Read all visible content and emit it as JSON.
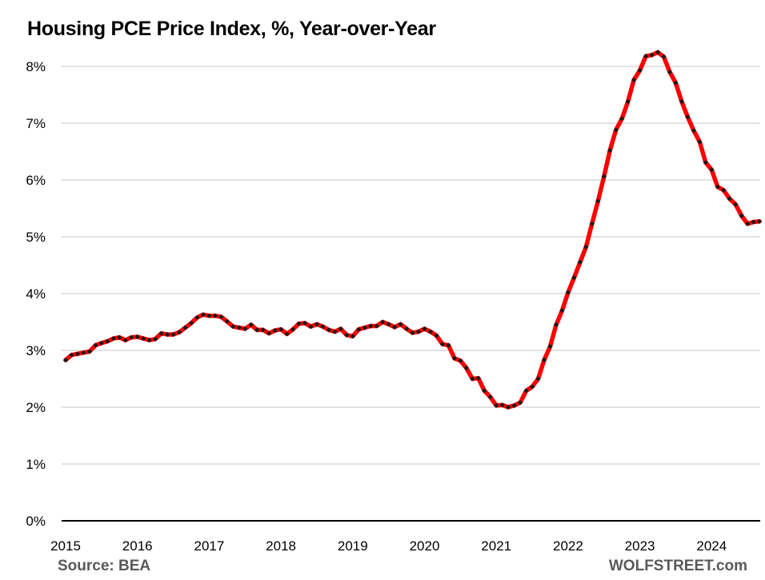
{
  "chart_data": {
    "type": "line",
    "title": "Housing PCE Price Index, %, Year-over-Year",
    "xlabel": "",
    "ylabel": "",
    "ylim": [
      0,
      8
    ],
    "yticks": [
      "0%",
      "1%",
      "2%",
      "3%",
      "4%",
      "5%",
      "6%",
      "7%",
      "8%"
    ],
    "ytick_values": [
      0,
      1,
      2,
      3,
      4,
      5,
      6,
      7,
      8
    ],
    "xticks": [
      "2015",
      "2016",
      "2017",
      "2018",
      "2019",
      "2020",
      "2021",
      "2022",
      "2023",
      "2024"
    ],
    "x_start": "2015-01",
    "x_end": "2024-09",
    "frequency": "monthly",
    "grid": true,
    "series": [
      {
        "name": "Housing PCE Price Index YoY",
        "color": "#ff0000",
        "marker_color": "#1a1a1a",
        "values": [
          2.83,
          2.92,
          2.94,
          2.96,
          2.98,
          3.09,
          3.13,
          3.16,
          3.21,
          3.23,
          3.18,
          3.23,
          3.24,
          3.21,
          3.18,
          3.2,
          3.3,
          3.28,
          3.28,
          3.32,
          3.4,
          3.48,
          3.58,
          3.63,
          3.61,
          3.61,
          3.59,
          3.51,
          3.42,
          3.4,
          3.38,
          3.45,
          3.36,
          3.36,
          3.3,
          3.35,
          3.37,
          3.29,
          3.37,
          3.47,
          3.48,
          3.42,
          3.46,
          3.42,
          3.36,
          3.33,
          3.38,
          3.27,
          3.25,
          3.37,
          3.4,
          3.43,
          3.43,
          3.5,
          3.46,
          3.41,
          3.46,
          3.38,
          3.31,
          3.33,
          3.38,
          3.33,
          3.26,
          3.11,
          3.09,
          2.86,
          2.82,
          2.69,
          2.5,
          2.51,
          2.29,
          2.18,
          2.03,
          2.04,
          2.0,
          2.03,
          2.08,
          2.29,
          2.36,
          2.5,
          2.83,
          3.07,
          3.45,
          3.7,
          4.02,
          4.28,
          4.55,
          4.82,
          5.23,
          5.63,
          6.06,
          6.52,
          6.88,
          7.08,
          7.38,
          7.76,
          7.93,
          8.18,
          8.2,
          8.25,
          8.17,
          7.9,
          7.71,
          7.38,
          7.11,
          6.87,
          6.67,
          6.31,
          6.18,
          5.88,
          5.82,
          5.67,
          5.57,
          5.37,
          5.23,
          5.26,
          5.27
        ]
      }
    ]
  },
  "footer": {
    "source": "Source: BEA",
    "brand": "WOLFSTREET.com"
  },
  "colors": {
    "line": "#ff0000",
    "markers": "#1a1a1a",
    "grid": "#d0d0d0",
    "axis": "#000000",
    "footer_text": "#595959"
  }
}
